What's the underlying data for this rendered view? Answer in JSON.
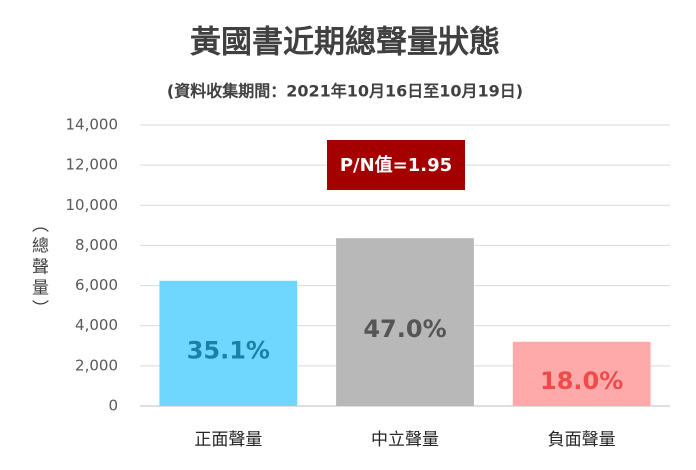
{
  "chart_data": {
    "type": "bar",
    "title": "黃國書近期總聲量狀態",
    "subtitle": "(資料收集期間：2021年10月16日至10月19日)",
    "y_label": "（總聲量）",
    "annotation": "P/N值=1.95",
    "categories": [
      "正面聲量",
      "中立聲量",
      "負面聲量"
    ],
    "values": [
      6240,
      8360,
      3200
    ],
    "colors": [
      "#6fd6fd",
      "#b8b8b8",
      "#ffaaaa"
    ],
    "percent_labels": [
      {
        "value": 35.1,
        "label": "35.1%"
      },
      {
        "value": 47.0,
        "label": "47.0%"
      },
      {
        "value": 18.0,
        "label": "18.0%"
      }
    ],
    "percent_label_colors": [
      "#1b7fa9",
      "#555555",
      "#f04a4a"
    ],
    "ylim": [
      0,
      14000
    ],
    "yticks": [
      0,
      {
        "value": 2000,
        "label": "2,000"
      },
      {
        "value": 4000,
        "label": "4,000"
      },
      {
        "value": 6000,
        "label": "6,000"
      },
      {
        "value": 8000,
        "label": "8,000"
      },
      {
        "value": 10000,
        "label": "10,000"
      },
      {
        "value": 12000,
        "label": "12,000"
      },
      {
        "value": 14000,
        "label": "14,000"
      }
    ],
    "grid": true
  }
}
